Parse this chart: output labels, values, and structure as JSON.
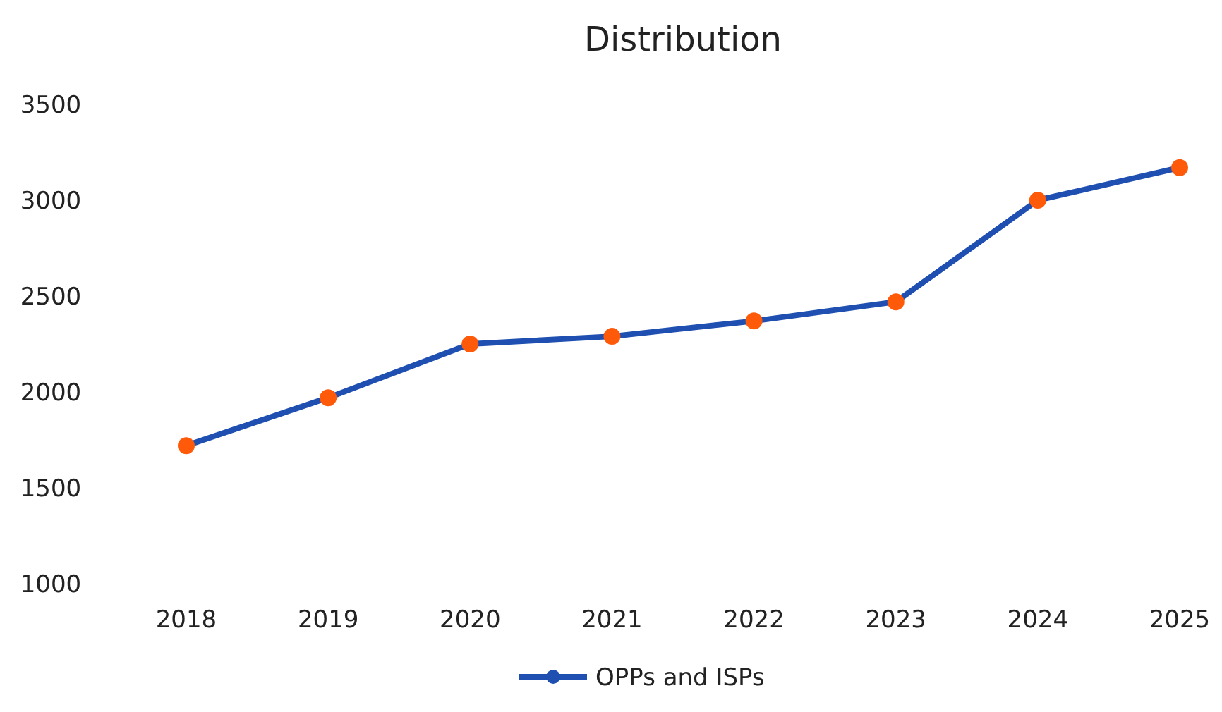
{
  "chart_data": {
    "type": "line",
    "title": "Distribution",
    "categories": [
      "2018",
      "2019",
      "2020",
      "2021",
      "2022",
      "2023",
      "2024",
      "2025"
    ],
    "series": [
      {
        "name": "OPPs and ISPs",
        "color": "#1f4fb0",
        "values": [
          1720,
          1970,
          2250,
          2290,
          2370,
          2470,
          3000,
          3170
        ]
      }
    ],
    "ylim": [
      1000,
      3500
    ],
    "yticks": [
      1000,
      1500,
      2000,
      2500,
      3000,
      3500
    ],
    "marker": "circle",
    "legend": "bottom",
    "grid": false
  }
}
